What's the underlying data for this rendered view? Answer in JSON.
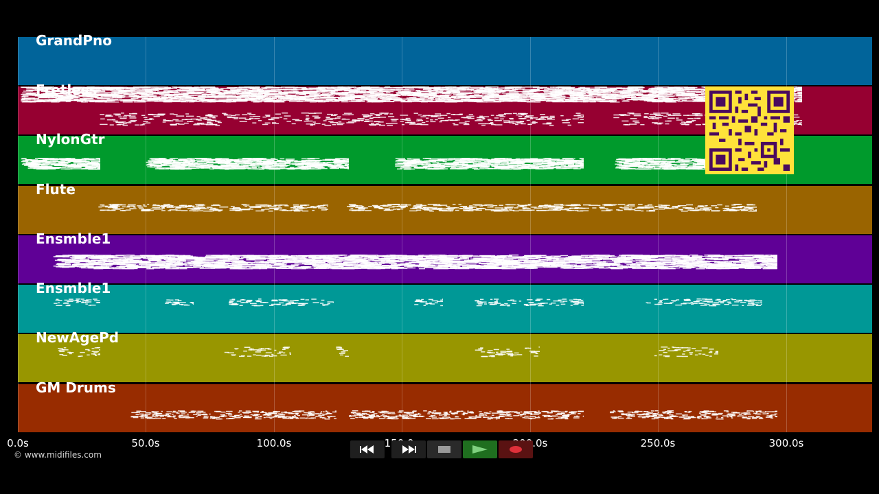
{
  "tracks": [
    {
      "name": "GrandPno",
      "color": "#01649a"
    },
    {
      "name": "Fretless",
      "color": "#960031"
    },
    {
      "name": "NylonGtr",
      "color": "#009a2c"
    },
    {
      "name": "Flute",
      "color": "#9a6400"
    },
    {
      "name": "Ensmble1",
      "color": "#5f0096"
    },
    {
      "name": "Ensmble1",
      "color": "#009896"
    },
    {
      "name": "NewAgePd",
      "color": "#989600"
    },
    {
      "name": "GM Drums",
      "color": "#982c00"
    }
  ],
  "timeline": {
    "ticks": [
      "0.0s",
      "50.0s",
      "100.0s",
      "150.0s",
      "200.0s",
      "250.0s",
      "300.0s"
    ]
  },
  "copyright": "© www.midifiles.com",
  "transport": {
    "rewind": "rewind-icon",
    "fast_forward": "fast-forward-icon",
    "stop": "stop-icon",
    "play": "play-icon",
    "record": "record-icon"
  },
  "colors": {
    "background": "#000000",
    "qr_background": "#ffe23a",
    "qr_modules": "#4a0a5e",
    "play_button": "#1f6f1f",
    "record_button": "#5a1212"
  }
}
